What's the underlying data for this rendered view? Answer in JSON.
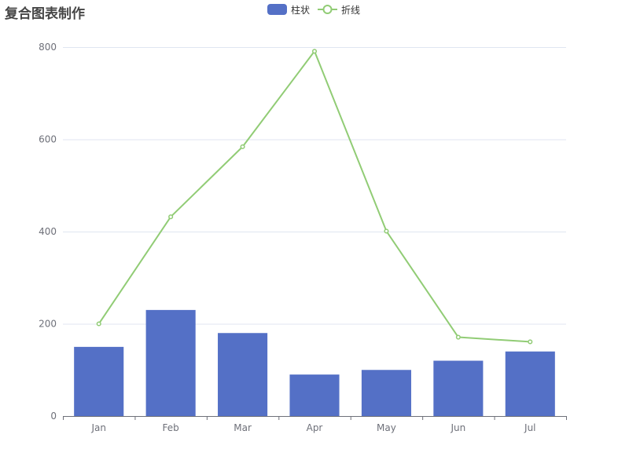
{
  "chart_data": {
    "type": "bar",
    "title": "复合图表制作",
    "categories": [
      "Jan",
      "Feb",
      "Mar",
      "Apr",
      "May",
      "Jun",
      "Jul"
    ],
    "ylim": [
      0,
      800
    ],
    "yticks": [
      0,
      200,
      400,
      600,
      800
    ],
    "grid": true,
    "legend_position": "top-center",
    "series": [
      {
        "name": "柱状",
        "type": "bar",
        "color": "#5470c6",
        "values": [
          150,
          230,
          180,
          90,
          100,
          120,
          140
        ]
      },
      {
        "name": "折线",
        "type": "line",
        "color": "#91cc75",
        "values": [
          200,
          432,
          584,
          791,
          401,
          171,
          161
        ]
      }
    ]
  }
}
